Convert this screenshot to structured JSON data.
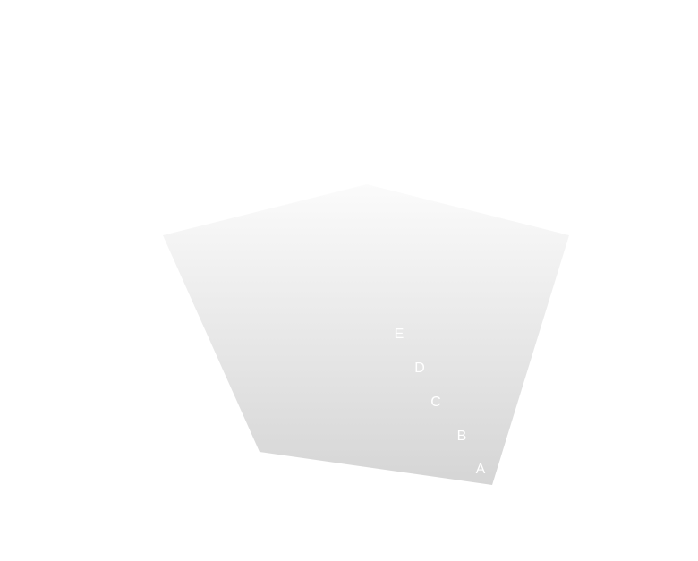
{
  "chart_data": {
    "type": "radar",
    "axes": [
      "A",
      "B",
      "C",
      "D",
      "E"
    ],
    "series": [
      {
        "values": [
          5,
          5,
          5,
          5,
          5
        ]
      }
    ],
    "range": [
      0,
      5
    ],
    "grid": false,
    "legend": "none",
    "colors": {
      "fill_top": "#fbfbfb",
      "fill_bottom": "#d5d5d5",
      "label": "#ffffff",
      "background": "#ffffff"
    }
  }
}
